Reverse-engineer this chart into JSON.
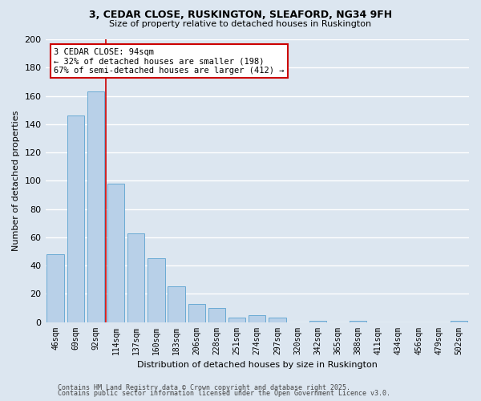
{
  "title1": "3, CEDAR CLOSE, RUSKINGTON, SLEAFORD, NG34 9FH",
  "title2": "Size of property relative to detached houses in Ruskington",
  "xlabel": "Distribution of detached houses by size in Ruskington",
  "ylabel": "Number of detached properties",
  "categories": [
    "46sqm",
    "69sqm",
    "92sqm",
    "114sqm",
    "137sqm",
    "160sqm",
    "183sqm",
    "206sqm",
    "228sqm",
    "251sqm",
    "274sqm",
    "297sqm",
    "320sqm",
    "342sqm",
    "365sqm",
    "388sqm",
    "411sqm",
    "434sqm",
    "456sqm",
    "479sqm",
    "502sqm"
  ],
  "values": [
    48,
    146,
    163,
    98,
    63,
    45,
    25,
    13,
    10,
    3,
    5,
    3,
    0,
    1,
    0,
    1,
    0,
    0,
    0,
    0,
    1
  ],
  "bar_color": "#b8d0e8",
  "bar_edge_color": "#6aaad4",
  "vline_x": 2.5,
  "vline_color": "#cc0000",
  "annotation_line1": "3 CEDAR CLOSE: 94sqm",
  "annotation_line2": "← 32% of detached houses are smaller (198)",
  "annotation_line3": "67% of semi-detached houses are larger (412) →",
  "annotation_box_color": "#cc0000",
  "ylim": [
    0,
    200
  ],
  "yticks": [
    0,
    20,
    40,
    60,
    80,
    100,
    120,
    140,
    160,
    180,
    200
  ],
  "fig_bg_color": "#dce6f0",
  "plot_bg_color": "#dce6f0",
  "grid_color": "#ffffff",
  "footer_line1": "Contains HM Land Registry data © Crown copyright and database right 2025.",
  "footer_line2": "Contains public sector information licensed under the Open Government Licence v3.0."
}
